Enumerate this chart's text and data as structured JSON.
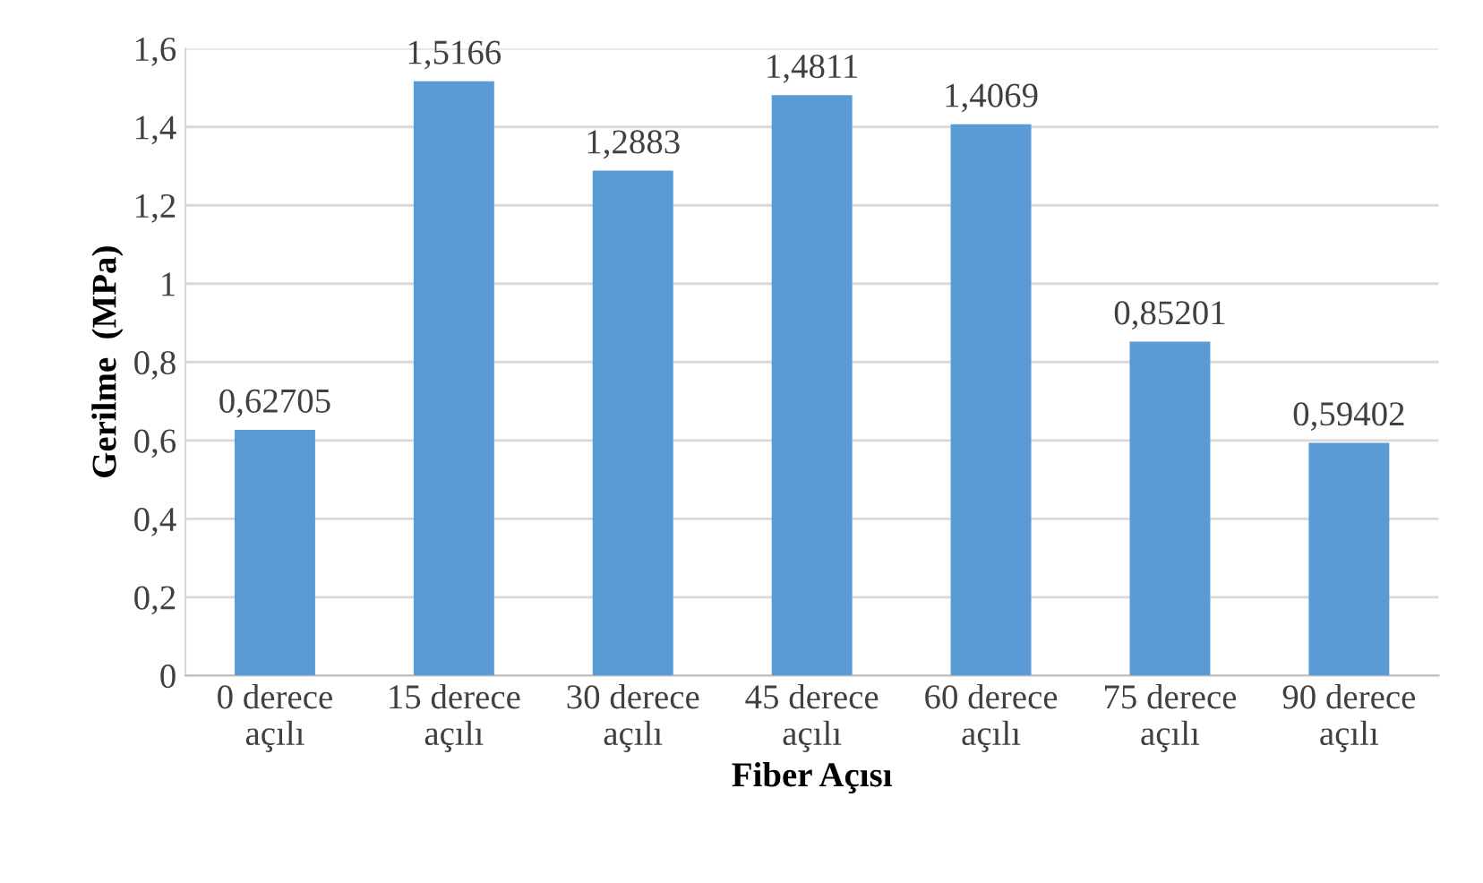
{
  "chart_data": {
    "type": "bar",
    "xlabel": "Fiber Açısı",
    "ylabel": "Gerilme  (MPa)",
    "categories": [
      "0 derece\naçılı",
      "15 derece\naçılı",
      "30 derece\naçılı",
      "45 derece\naçılı",
      "60 derece\naçılı",
      "75 derece\naçılı",
      "90 derece\naçılı"
    ],
    "values": [
      0.62705,
      1.5166,
      1.2883,
      1.4811,
      1.4069,
      0.85201,
      0.59402
    ],
    "value_labels": [
      "0,62705",
      "1,5166",
      "1,2883",
      "1,4811",
      "1,4069",
      "0,85201",
      "0,59402"
    ],
    "color": "#5b9bd5",
    "ylim": [
      0,
      1.6
    ],
    "yticks": [
      0,
      {
        "value": 0.2,
        "label": "0,2"
      },
      {
        "value": 0.4,
        "label": "0,4"
      },
      {
        "value": 0.6,
        "label": "0,6"
      },
      {
        "value": 0.8,
        "label": "0,8"
      },
      1,
      {
        "value": 1.2,
        "label": "1,2"
      },
      {
        "value": 1.4,
        "label": "1,4"
      },
      {
        "value": 1.6,
        "label": "1,6"
      }
    ],
    "grid": "y"
  }
}
